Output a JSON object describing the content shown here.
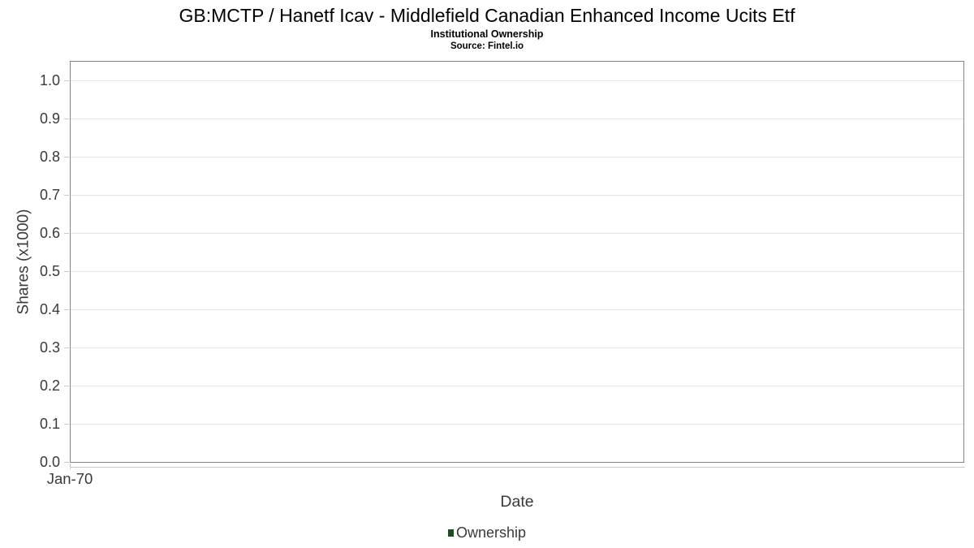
{
  "header": {
    "title": "GB:MCTP / Hanetf Icav - Middlefield Canadian Enhanced Income Ucits Etf",
    "subtitle": "Institutional Ownership",
    "source": "Source: Fintel.io"
  },
  "chart_data": {
    "type": "line",
    "title": "GB:MCTP / Hanetf Icav - Middlefield Canadian Enhanced Income Ucits Etf",
    "subtitle": "Institutional Ownership",
    "source": "Source: Fintel.io",
    "xlabel": "Date",
    "ylabel": "Shares (x1000)",
    "ylim": [
      0.0,
      1.05
    ],
    "yticks": [
      0.0,
      0.1,
      0.2,
      0.3,
      0.4,
      0.5,
      0.6,
      0.7,
      0.8,
      0.9,
      1.0
    ],
    "ytick_labels": [
      "0.0",
      "0.1",
      "0.2",
      "0.3",
      "0.4",
      "0.5",
      "0.6",
      "0.7",
      "0.8",
      "0.9",
      "1.0"
    ],
    "xticks": [
      "Jan-70"
    ],
    "grid": "horizontal",
    "legend_position": "bottom",
    "series": [
      {
        "name": "Ownership",
        "color": "#1d4d22",
        "points": []
      }
    ]
  },
  "colors": {
    "title_text": "#000000",
    "axis_text": "#3a3a3a",
    "plot_border": "#858585",
    "gridline": "#e4e4e4",
    "tick": "#c9c9c9",
    "legend_marker": "#1d4d22"
  }
}
